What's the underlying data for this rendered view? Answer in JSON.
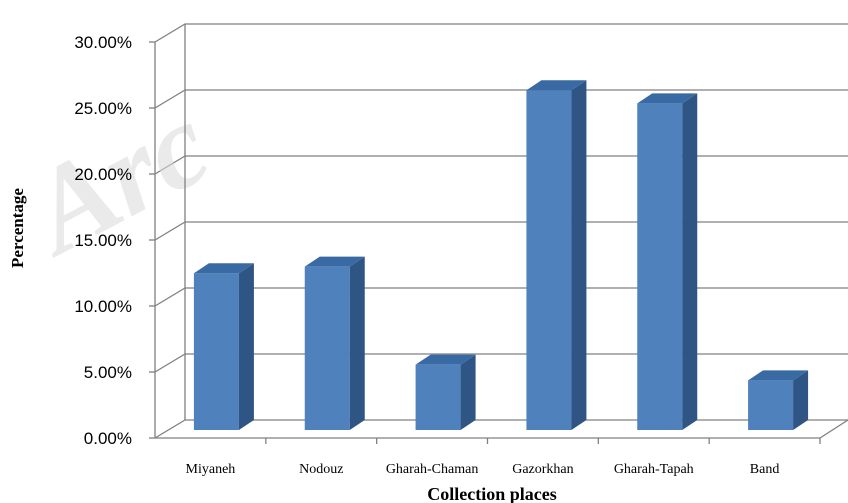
{
  "watermark": "Arc",
  "chart_data": {
    "type": "bar",
    "categories": [
      "Miyaneh",
      "Nodouz",
      "Gharah-Chaman",
      "Gazorkhan",
      "Gharah-Tapah",
      "Band"
    ],
    "values": [
      12.0,
      12.5,
      5.0,
      26.0,
      25.0,
      3.8
    ],
    "xlabel": "Collection places",
    "ylabel": "Percentage",
    "ylim": [
      0,
      30
    ],
    "yticks": [
      "0.00%",
      "5.00%",
      "10.00%",
      "15.00%",
      "20.00%",
      "25.00%",
      "30.00%"
    ],
    "grid": true,
    "style": "3d-column",
    "colors": {
      "bar_front": "#4f81bd",
      "bar_side": "#2f5585",
      "bar_top": "#3a6aa4",
      "grid": "#808080"
    }
  }
}
